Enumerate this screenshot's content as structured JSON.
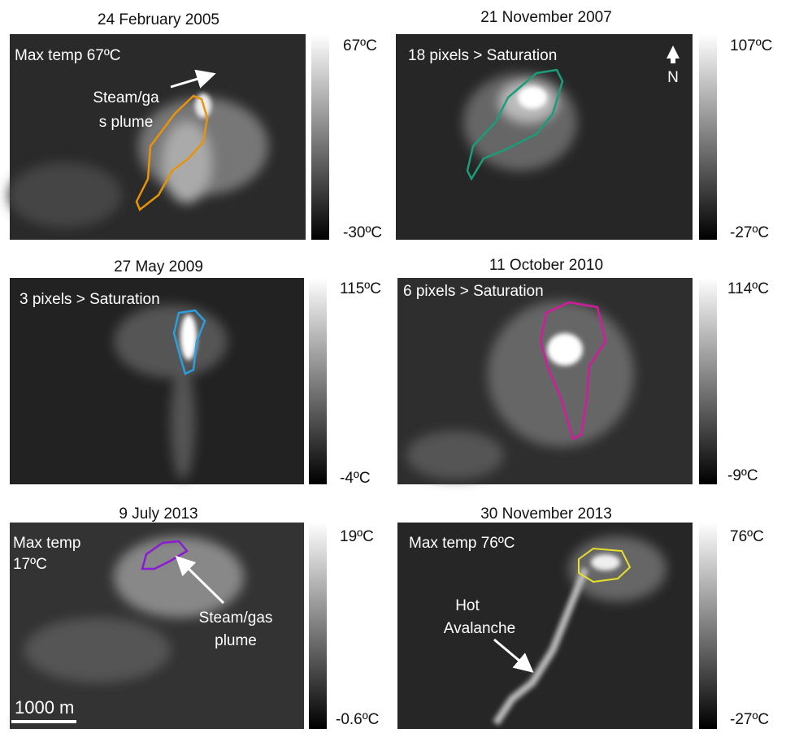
{
  "panels": [
    {
      "title": "24 February 2005",
      "colorbar": {
        "max": "67ºC",
        "min": "-30ºC"
      },
      "annotations": [
        [
          "Max temp 67ºC"
        ],
        [
          "Steam/ga",
          "s plume"
        ]
      ]
    },
    {
      "title": "21 November 2007",
      "colorbar": {
        "max": "107ºC",
        "min": "-27ºC"
      },
      "annotations": [
        [
          "18 pixels > Saturation"
        ],
        [
          "N"
        ]
      ]
    },
    {
      "title": "27 May 2009",
      "colorbar": {
        "max": "115ºC",
        "min": "-4ºC"
      },
      "annotations": [
        [
          "3 pixels > Saturation"
        ]
      ]
    },
    {
      "title": "11 October 2010",
      "colorbar": {
        "max": "114ºC",
        "min": "-9ºC"
      },
      "annotations": [
        [
          "6 pixels > Saturation"
        ]
      ]
    },
    {
      "title": "9 July 2013",
      "colorbar": {
        "max": "19ºC",
        "min": "-0.6ºC"
      },
      "annotations": [
        [
          "Max temp",
          "17ºC"
        ],
        [
          "Steam/gas",
          "plume"
        ],
        [
          "1000 m"
        ]
      ]
    },
    {
      "title": "30 November 2013",
      "colorbar": {
        "max": "76ºC",
        "min": "-27ºC"
      },
      "annotations": [
        [
          "Max temp 76ºC"
        ],
        [
          "Hot",
          "Avalanche"
        ]
      ]
    }
  ]
}
